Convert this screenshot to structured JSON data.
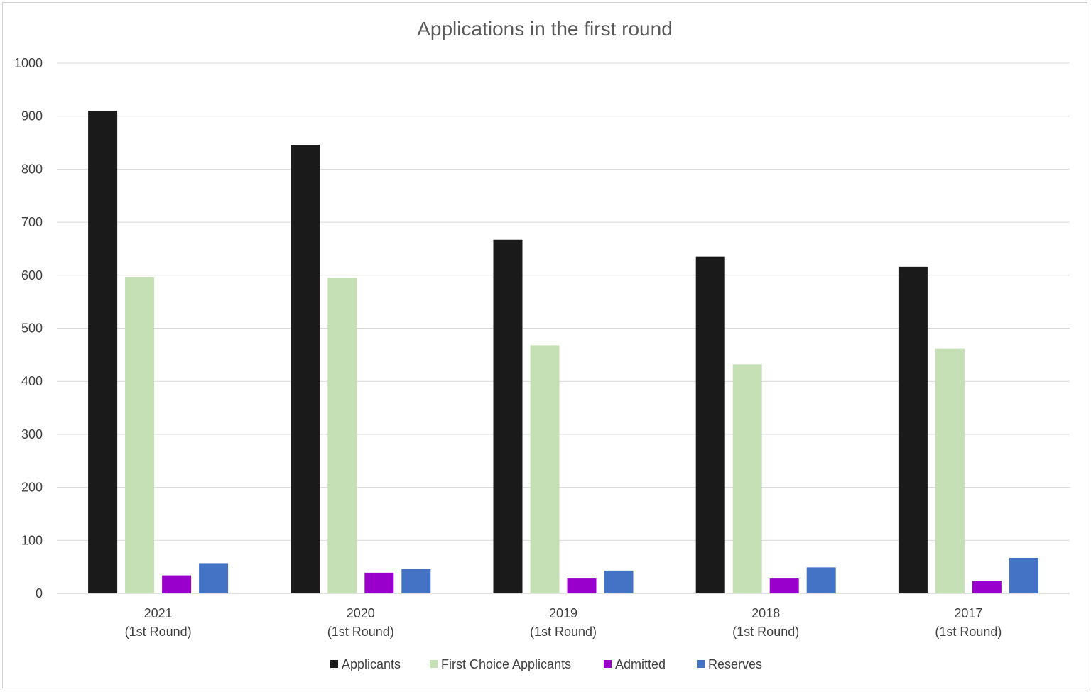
{
  "chart_data": {
    "type": "bar",
    "title": "Applications in the first round",
    "categories": [
      [
        "2021",
        "(1st Round)"
      ],
      [
        "2020",
        "(1st Round)"
      ],
      [
        "2019",
        "(1st Round)"
      ],
      [
        "2018",
        "(1st Round)"
      ],
      [
        "2017",
        "(1st Round)"
      ]
    ],
    "series": [
      {
        "name": "Applicants",
        "color": "#1a1a1a",
        "values": [
          910,
          846,
          667,
          635,
          616
        ]
      },
      {
        "name": "First Choice Applicants",
        "color": "#c5e0b4",
        "values": [
          597,
          595,
          468,
          432,
          461
        ]
      },
      {
        "name": "Admitted",
        "color": "#9900cc",
        "values": [
          34,
          39,
          28,
          28,
          23
        ]
      },
      {
        "name": "Reserves",
        "color": "#4472c4",
        "values": [
          57,
          46,
          43,
          49,
          67
        ]
      }
    ],
    "ylim": [
      0,
      1000
    ],
    "yticks": [
      0,
      100,
      200,
      300,
      400,
      500,
      600,
      700,
      800,
      900,
      1000
    ],
    "grid": true,
    "legend": "bottom"
  }
}
